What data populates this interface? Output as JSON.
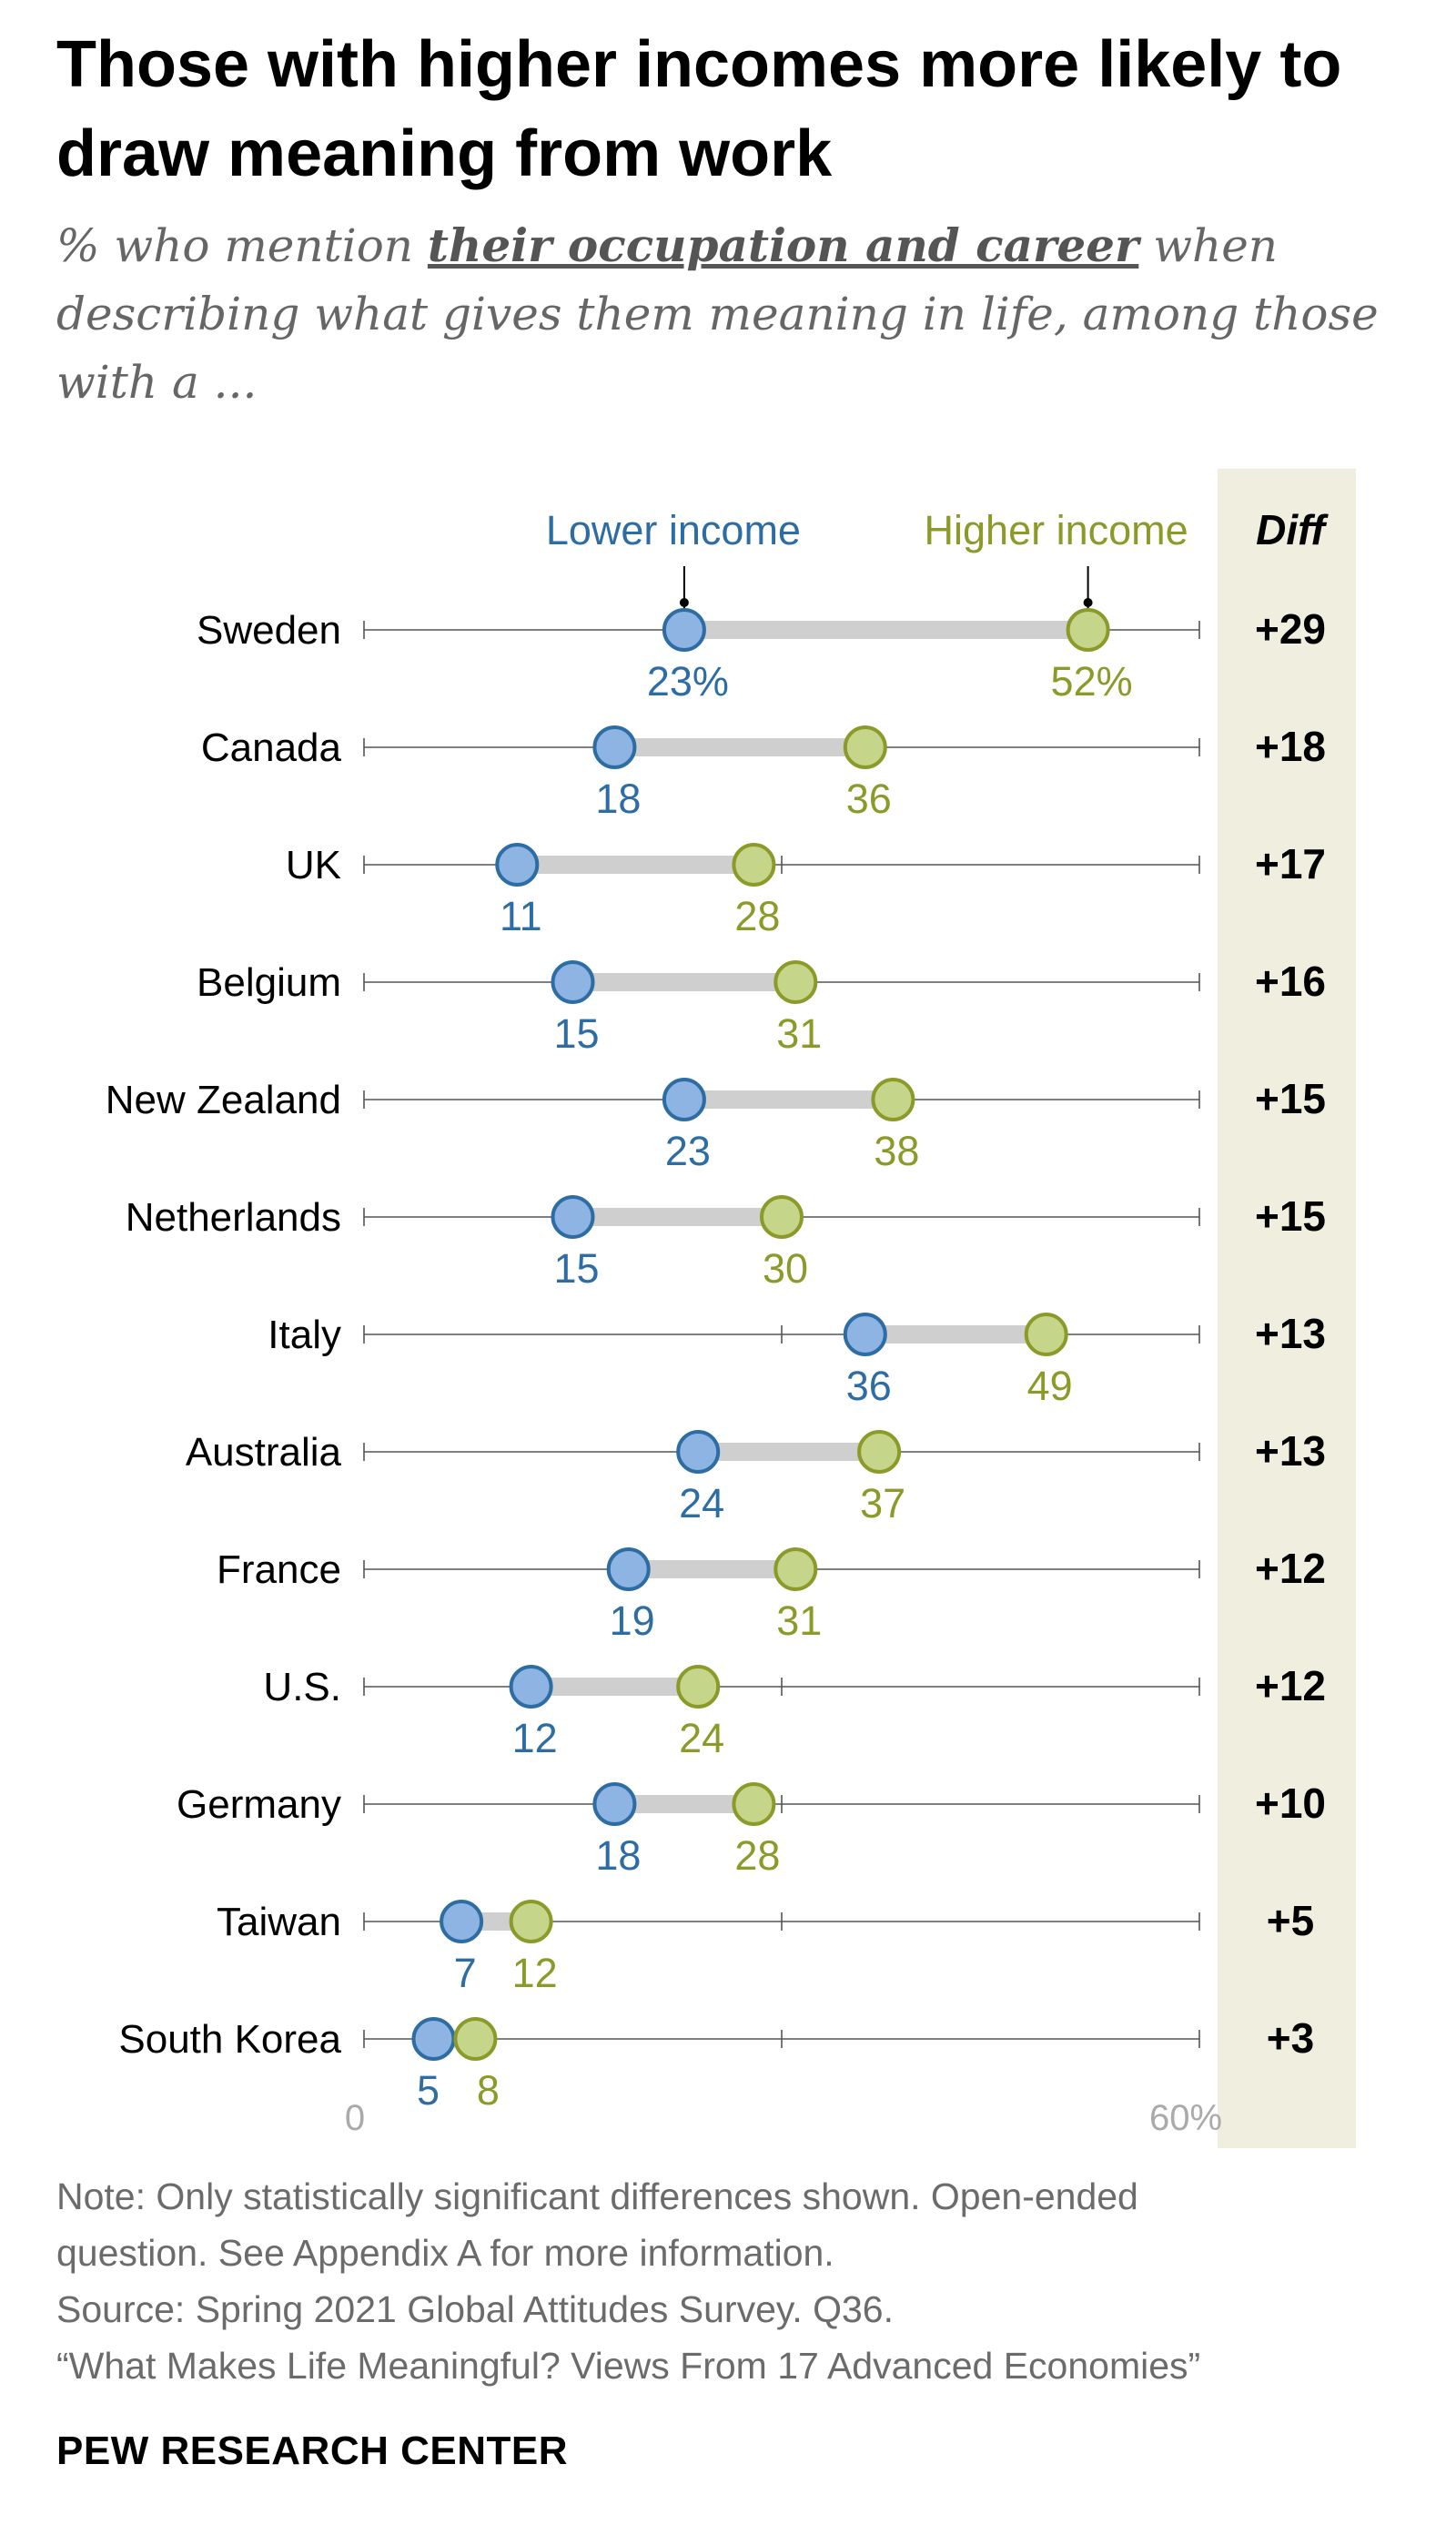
{
  "title": "Those with higher incomes more likely to draw meaning from work",
  "subtitle": {
    "prefix": "% who mention ",
    "emphasis": "their occupation and career",
    "suffix": " when describing what gives them meaning in life, among those with a ..."
  },
  "chart_data": {
    "type": "dot-plot",
    "series": [
      {
        "name": "Lower income",
        "color": "#2e6da4",
        "fill": "#8db4e2"
      },
      {
        "name": "Higher income",
        "color": "#8c9a2a",
        "fill": "#c5d58a"
      }
    ],
    "diff_header": "Diff",
    "xlim": [
      0,
      60
    ],
    "axis_min_label": "0",
    "axis_max_label": "60%",
    "diff_panel_color": "#efeedf",
    "rows": [
      {
        "country": "Sweden",
        "lower": 23,
        "higher": 52,
        "lower_label": "23%",
        "higher_label": "52%",
        "diff": "+29"
      },
      {
        "country": "Canada",
        "lower": 18,
        "higher": 36,
        "lower_label": "18",
        "higher_label": "36",
        "diff": "+18"
      },
      {
        "country": "UK",
        "lower": 11,
        "higher": 28,
        "lower_label": "11",
        "higher_label": "28",
        "diff": "+17"
      },
      {
        "country": "Belgium",
        "lower": 15,
        "higher": 31,
        "lower_label": "15",
        "higher_label": "31",
        "diff": "+16"
      },
      {
        "country": "New Zealand",
        "lower": 23,
        "higher": 38,
        "lower_label": "23",
        "higher_label": "38",
        "diff": "+15"
      },
      {
        "country": "Netherlands",
        "lower": 15,
        "higher": 30,
        "lower_label": "15",
        "higher_label": "30",
        "diff": "+15"
      },
      {
        "country": "Italy",
        "lower": 36,
        "higher": 49,
        "lower_label": "36",
        "higher_label": "49",
        "diff": "+13"
      },
      {
        "country": "Australia",
        "lower": 24,
        "higher": 37,
        "lower_label": "24",
        "higher_label": "37",
        "diff": "+13"
      },
      {
        "country": "France",
        "lower": 19,
        "higher": 31,
        "lower_label": "19",
        "higher_label": "31",
        "diff": "+12"
      },
      {
        "country": "U.S.",
        "lower": 12,
        "higher": 24,
        "lower_label": "12",
        "higher_label": "24",
        "diff": "+12"
      },
      {
        "country": "Germany",
        "lower": 18,
        "higher": 28,
        "lower_label": "18",
        "higher_label": "28",
        "diff": "+10"
      },
      {
        "country": "Taiwan",
        "lower": 7,
        "higher": 12,
        "lower_label": "7",
        "higher_label": "12",
        "diff": "+5"
      },
      {
        "country": "South Korea",
        "lower": 5,
        "higher": 8,
        "lower_label": "5",
        "higher_label": "8",
        "diff": "+3"
      }
    ]
  },
  "notes": [
    "Note: Only statistically significant differences shown. Open-ended",
    "question. See Appendix A for more information.",
    "Source: Spring 2021 Global Attitudes Survey. Q36.",
    "“What Makes Life Meaningful? Views From 17 Advanced Economies”"
  ],
  "brand": "PEW RESEARCH CENTER"
}
